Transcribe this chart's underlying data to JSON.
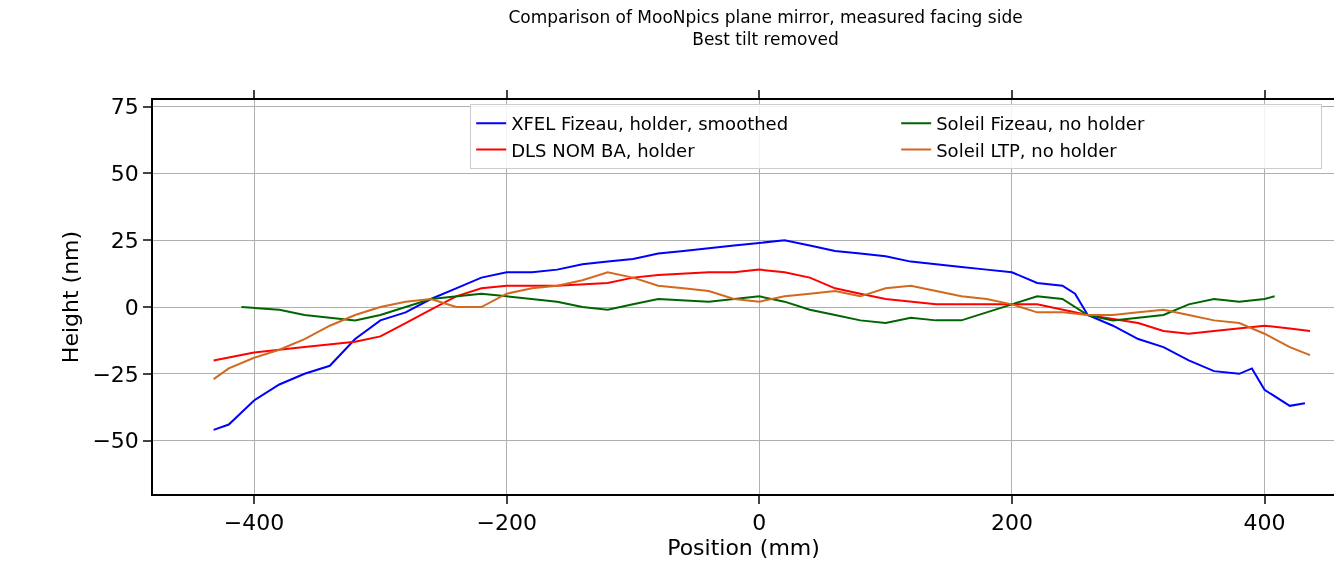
{
  "chart_data": {
    "type": "line",
    "title": "Comparison of MooNpics plane mirror, measured facing side",
    "subtitle": "Best tilt removed",
    "xlabel": "Position (mm)",
    "ylabel": "Height (nm)",
    "xlim": [
      -480,
      455
    ],
    "ylim": [
      -70,
      77.5
    ],
    "xticks": [
      {
        "value": -400,
        "label": "−400"
      },
      {
        "value": -200,
        "label": "−200"
      },
      0,
      200,
      400
    ],
    "yticks": [
      {
        "value": -50,
        "label": "−50"
      },
      {
        "value": -25,
        "label": "−25"
      },
      0,
      25,
      50,
      75
    ],
    "grid": true,
    "legend": "top right",
    "line_style": "solid",
    "marker": "none",
    "series": [
      {
        "name": "XFEL Fizeau, holder, smoothed",
        "color": "#0000ff",
        "x": [
          -432,
          -420,
          -400,
          -380,
          -360,
          -340,
          -320,
          -300,
          -280,
          -260,
          -240,
          -220,
          -200,
          -180,
          -160,
          -140,
          -120,
          -100,
          -80,
          -60,
          -40,
          -20,
          0,
          20,
          40,
          60,
          80,
          100,
          120,
          140,
          160,
          180,
          200,
          220,
          240,
          250,
          260,
          280,
          300,
          320,
          340,
          360,
          380,
          390,
          400,
          420,
          432
        ],
        "values": [
          -46,
          -44,
          -35,
          -29,
          -25,
          -22,
          -12,
          -5,
          -2,
          3,
          7,
          11,
          13,
          13,
          14,
          16,
          17,
          18,
          20,
          21,
          22,
          23,
          24,
          25,
          23,
          21,
          20,
          19,
          17,
          16,
          15,
          14,
          13,
          9,
          8,
          5,
          -3,
          -7,
          -12,
          -15,
          -20,
          -24,
          -25,
          -23,
          -31,
          -37,
          -36
        ]
      },
      {
        "name": "DLS NOM BA, holder",
        "color": "#ff0000",
        "x": [
          -432,
          -400,
          -360,
          -320,
          -300,
          -280,
          -260,
          -240,
          -220,
          -200,
          -160,
          -120,
          -100,
          -80,
          -40,
          -20,
          0,
          20,
          40,
          60,
          80,
          100,
          140,
          180,
          220,
          260,
          300,
          320,
          340,
          360,
          400,
          420,
          436
        ],
        "values": [
          -20,
          -17,
          -15,
          -13,
          -11,
          -6,
          -1,
          4,
          7,
          8,
          8,
          9,
          11,
          12,
          13,
          13,
          14,
          13,
          11,
          7,
          5,
          3,
          1,
          1,
          1,
          -3,
          -6,
          -9,
          -10,
          -9,
          -7,
          -8,
          -9
        ]
      },
      {
        "name": "Soleil Fizeau, no holder",
        "color": "#006400",
        "x": [
          -410,
          -380,
          -360,
          -340,
          -320,
          -300,
          -280,
          -260,
          -220,
          -200,
          -160,
          -140,
          -120,
          -100,
          -80,
          -40,
          0,
          20,
          40,
          60,
          80,
          100,
          120,
          140,
          160,
          180,
          200,
          220,
          240,
          260,
          280,
          300,
          320,
          340,
          360,
          380,
          400,
          408
        ],
        "values": [
          0,
          -1,
          -3,
          -4,
          -5,
          -3,
          0,
          3,
          5,
          4,
          2,
          0,
          -1,
          1,
          3,
          2,
          4,
          2,
          -1,
          -3,
          -5,
          -6,
          -4,
          -5,
          -5,
          -2,
          1,
          4,
          3,
          -3,
          -5,
          -4,
          -3,
          1,
          3,
          2,
          3,
          4
        ]
      },
      {
        "name": "Soleil LTP, no holder",
        "color": "#d2691e",
        "x": [
          -432,
          -420,
          -400,
          -380,
          -360,
          -340,
          -320,
          -300,
          -280,
          -260,
          -240,
          -220,
          -200,
          -180,
          -160,
          -140,
          -120,
          -100,
          -80,
          -60,
          -40,
          -20,
          0,
          20,
          40,
          60,
          80,
          100,
          120,
          140,
          160,
          180,
          200,
          220,
          240,
          260,
          280,
          300,
          320,
          340,
          360,
          380,
          400,
          420,
          436
        ],
        "values": [
          -27,
          -23,
          -19,
          -16,
          -12,
          -7,
          -3,
          0,
          2,
          3,
          0,
          0,
          5,
          7,
          8,
          10,
          13,
          11,
          8,
          7,
          6,
          3,
          2,
          4,
          5,
          6,
          4,
          7,
          8,
          6,
          4,
          3,
          1,
          -2,
          -2,
          -3,
          -3,
          -2,
          -1,
          -3,
          -5,
          -6,
          -10,
          -15,
          -18
        ]
      }
    ]
  }
}
